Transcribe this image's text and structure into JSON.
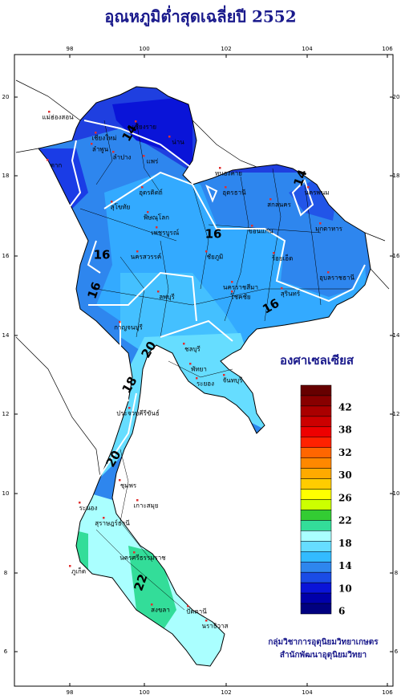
{
  "title": "อุณหภูมิต่ำสุดเฉลี่ยปี 2552",
  "axes": {
    "top": [
      98,
      100,
      102,
      104,
      106
    ],
    "bottom": [
      98,
      100,
      102,
      104,
      106
    ],
    "left": [
      20,
      18,
      16,
      14,
      12,
      10,
      8,
      6
    ],
    "right": [
      20,
      18,
      16,
      14,
      12,
      10,
      8,
      6
    ]
  },
  "legend": {
    "title": "องศาเซลเซียส",
    "labels": [
      42,
      38,
      32,
      30,
      26,
      22,
      18,
      14,
      10,
      6
    ],
    "colors": [
      "#660000",
      "#880000",
      "#aa0000",
      "#cc0000",
      "#ee0000",
      "#ff2200",
      "#ff6600",
      "#ff8800",
      "#ffaa00",
      "#ffcc00",
      "#ffff00",
      "#ccff00",
      "#33cc33",
      "#33dd99",
      "#aaffff",
      "#66ddff",
      "#33bbff",
      "#2e86ee",
      "#1a4ce6",
      "#0a14d8",
      "#0000aa",
      "#000080"
    ]
  },
  "credits": [
    "กลุ่มวิชาการอุตุนิยมวิทยาเกษตร",
    "สำนักพัฒนาอุตุนิยมวิทยา"
  ],
  "places": [
    "แม่ฮ่องสอน",
    "เชียงราย",
    "เชียงใหม่",
    "ลำพูน",
    "ลำปาง",
    "น่าน",
    "แพร่",
    "ตาก",
    "อุตรดิตถ์",
    "สุโขทัย",
    "พิษณุโลก",
    "เพชรบูรณ์",
    "หนองคาย",
    "อุดรธานี",
    "นครพนม",
    "สกลนคร",
    "มุกดาหาร",
    "ขอนแก่น",
    "ชัยภูมิ",
    "นครสวรรค์",
    "ร้อยเอ็ด",
    "นครราชสีมา",
    "โชคชัย",
    "สุรินทร์",
    "อุบลราชธานี",
    "ลพบุรี",
    "กาญจนบุรี",
    "ชลบุรี",
    "พัทยา",
    "ระยอง",
    "จันทบุรี",
    "ประจวบคีรีขันธ์",
    "ชุมพร",
    "ระนอง",
    "เกาะสมุย",
    "สุราษฎร์ธานี",
    "ภูเก็ต",
    "นครศรีธรรมราช",
    "สงขลา",
    "ปัตตานี",
    "นราธิวาส"
  ],
  "contours": [
    14,
    14,
    16,
    16,
    16,
    16,
    18,
    20,
    20,
    22
  ]
}
